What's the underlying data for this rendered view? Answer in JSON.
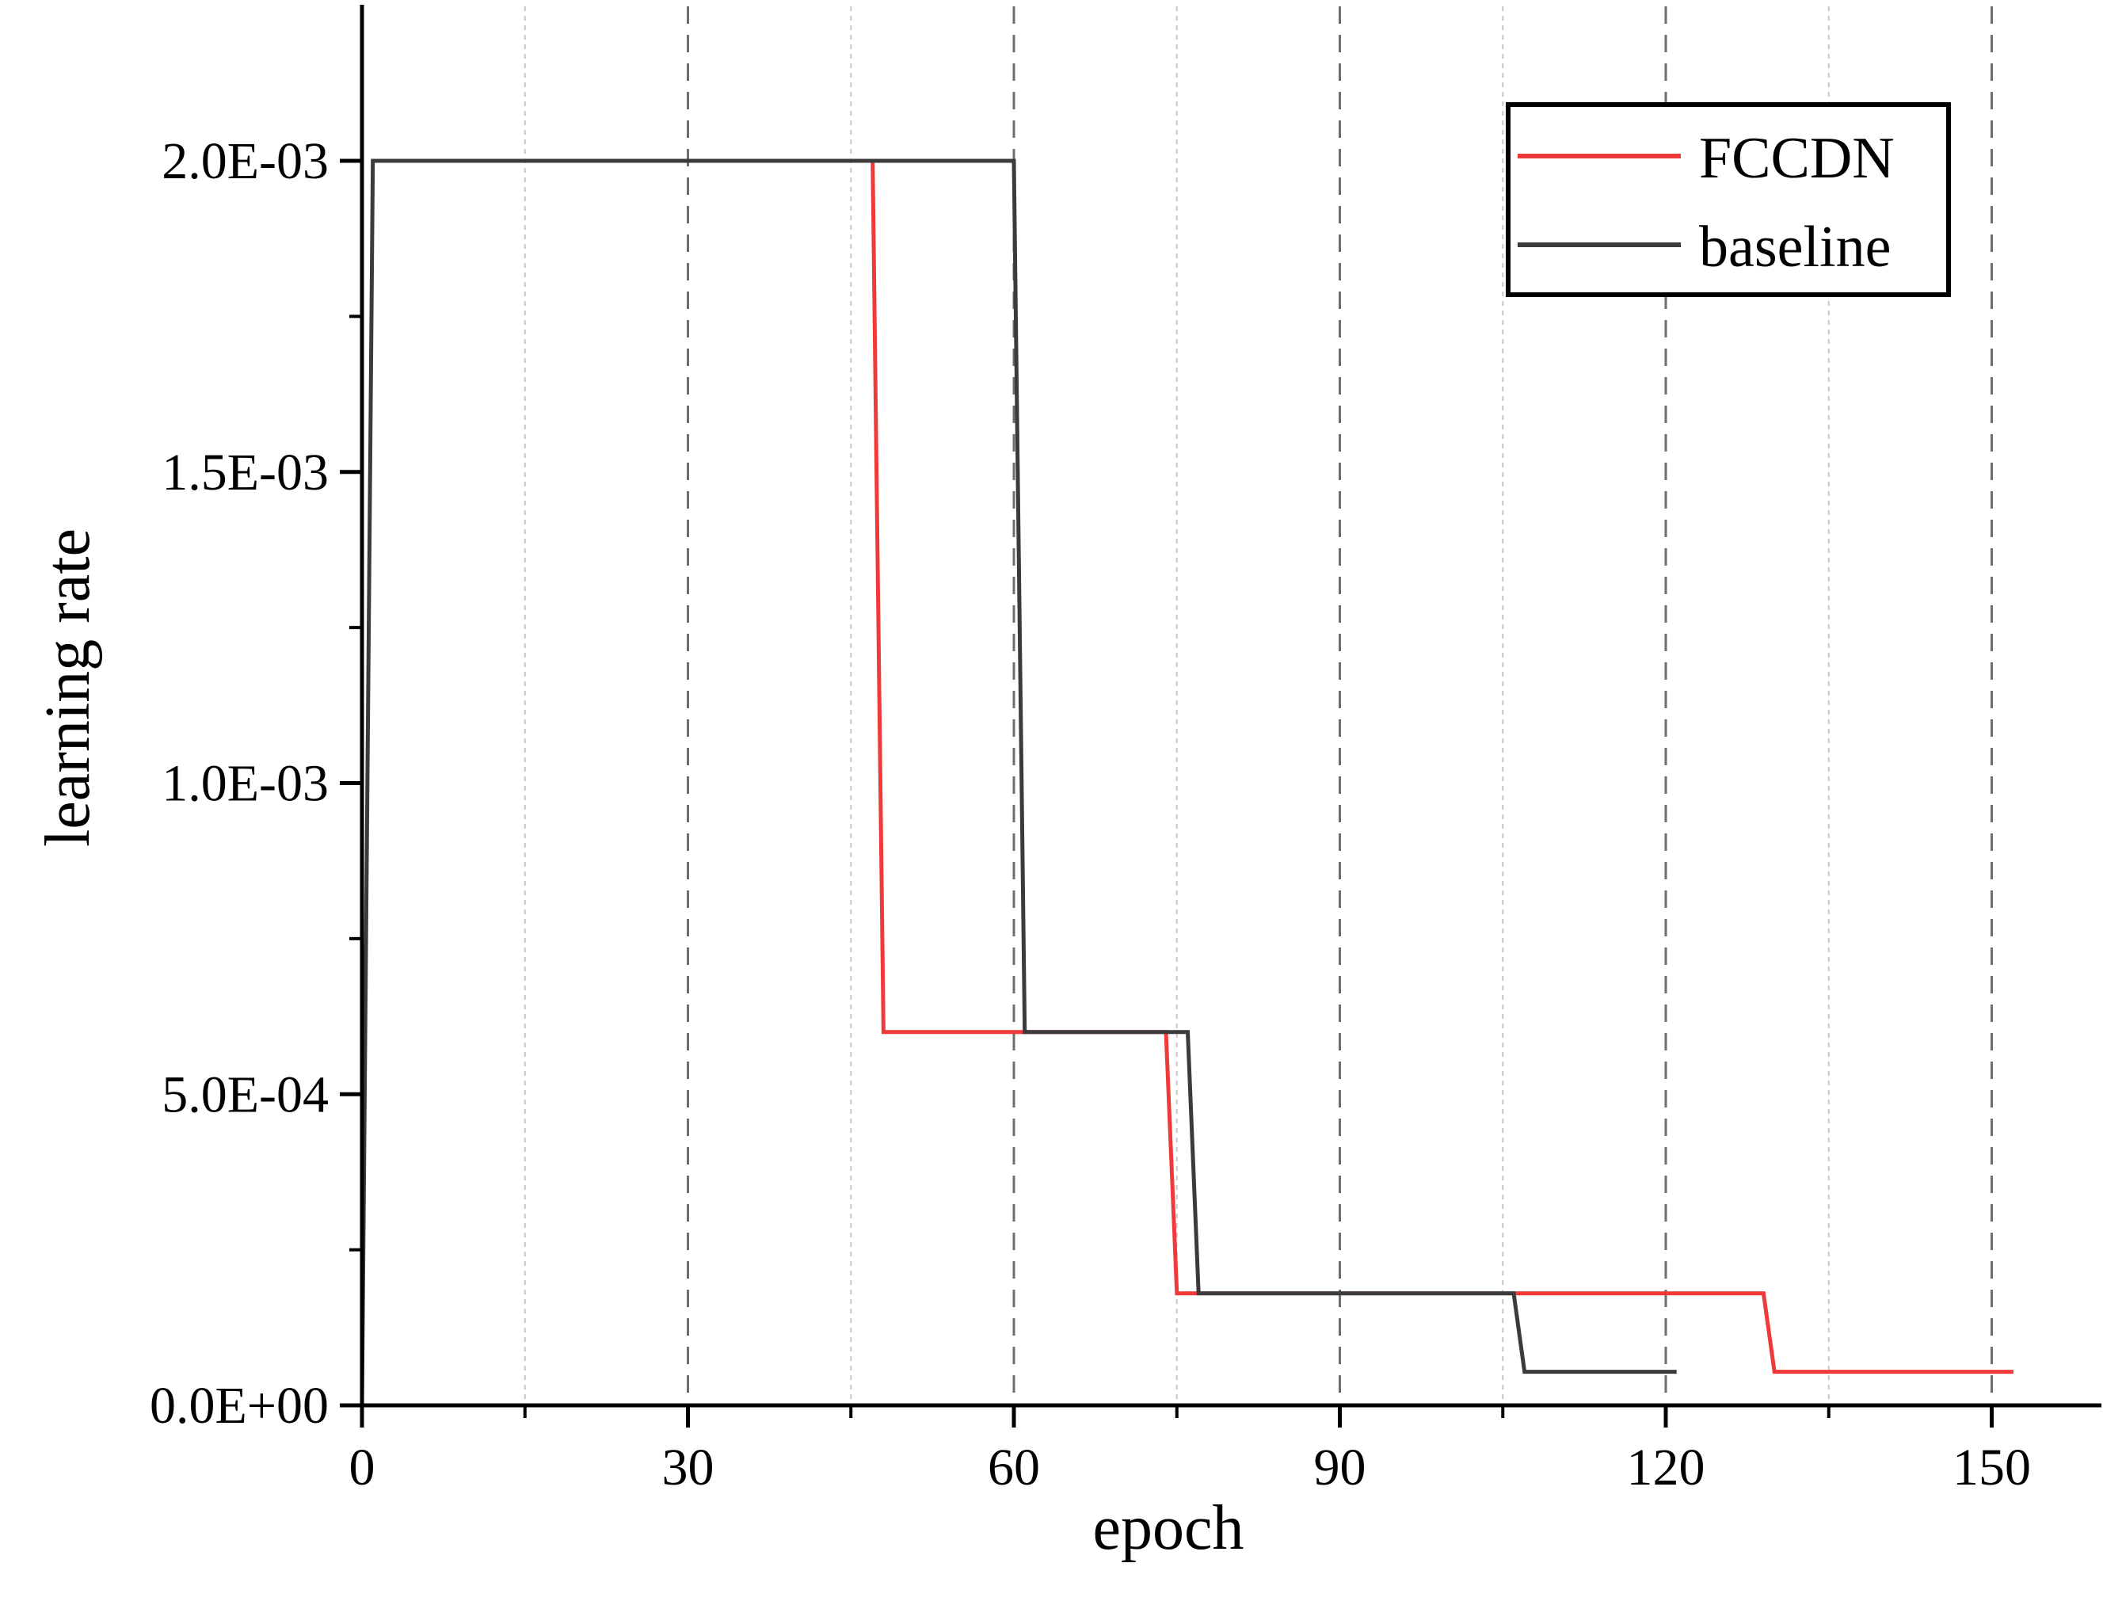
{
  "chart_data": {
    "type": "line",
    "xlabel": "epoch",
    "ylabel": "learning rate",
    "xlim": [
      0,
      160
    ],
    "ylim": [
      0,
      0.00225
    ],
    "x_ticks": [
      0,
      30,
      60,
      90,
      120,
      150
    ],
    "x_tick_labels": [
      "0",
      "30",
      "60",
      "90",
      "120",
      "150"
    ],
    "x_minor_ticks": [
      15,
      45,
      75,
      105,
      135
    ],
    "y_ticks": [
      0,
      0.0005,
      0.001,
      0.0015,
      0.002
    ],
    "y_tick_labels": [
      "0.0E+00",
      "5.0E-04",
      "1.0E-03",
      "1.5E-03",
      "2.0E-03"
    ],
    "y_minor_ticks": [
      0.00025,
      0.00075,
      0.00125,
      0.00175
    ],
    "grid": "vertical dashed",
    "legend": "top-right",
    "series": [
      {
        "name": "FCCDN",
        "color": "#f03a3a",
        "x": [
          47,
          48,
          74,
          75,
          129,
          130,
          152
        ],
        "y": [
          0.002,
          0.0006,
          0.0006,
          0.00018,
          0.00018,
          5.4e-05,
          5.4e-05
        ]
      },
      {
        "name": "baseline",
        "color": "#3b3b3b",
        "x": [
          0,
          1,
          60,
          61,
          76,
          77,
          106,
          107,
          121
        ],
        "y": [
          0,
          0.002,
          0.002,
          0.0006,
          0.0006,
          0.00018,
          0.00018,
          5.4e-05,
          5.4e-05
        ]
      }
    ]
  }
}
